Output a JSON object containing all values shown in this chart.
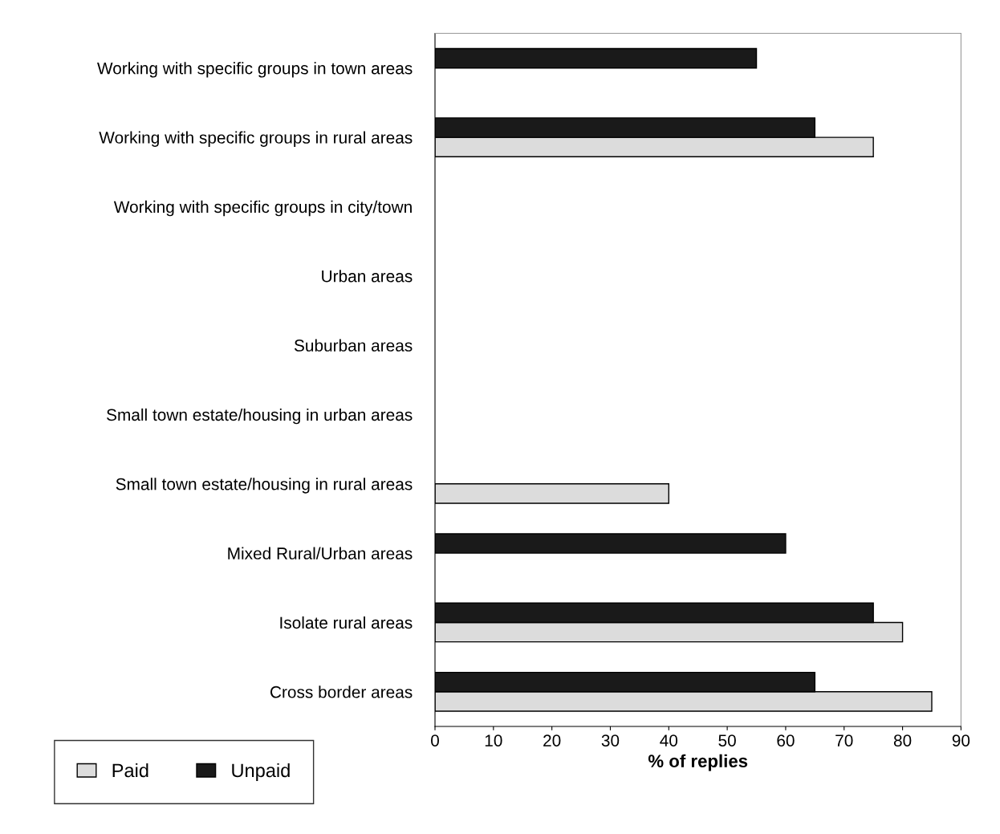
{
  "chart_data": {
    "type": "bar",
    "orientation": "horizontal",
    "xlabel": "% of replies",
    "categories": [
      "Working with specific groups in town areas",
      "Working with specific groups in rural areas",
      "Working with specific groups in city/town",
      "Urban areas",
      "Suburban areas",
      "Small town estate/housing in urban areas",
      "Small town estate/housing in rural areas",
      "Mixed Rural/Urban areas",
      "Isolate rural areas",
      "Cross border areas"
    ],
    "series": [
      {
        "name": "Paid",
        "color": "#dcdcdc",
        "values": [
          null,
          75,
          null,
          null,
          null,
          null,
          40,
          null,
          80,
          85
        ]
      },
      {
        "name": "Unpaid",
        "color": "#1a1a1a",
        "values": [
          55,
          65,
          null,
          null,
          null,
          null,
          null,
          60,
          75,
          65
        ]
      }
    ],
    "xlim": [
      0,
      90
    ],
    "xticks": [
      0,
      10,
      20,
      30,
      40,
      50,
      60,
      70,
      80,
      90
    ],
    "grid": false,
    "legend": "bottom left"
  }
}
